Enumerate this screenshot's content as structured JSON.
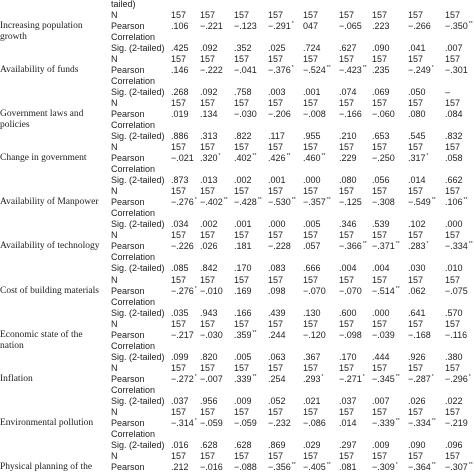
{
  "table": {
    "rows": [
      {
        "var": "",
        "stat": "tailed)",
        "values": []
      },
      {
        "var": "",
        "stat": "N",
        "values": [
          "157",
          "157",
          "157",
          "157",
          "157",
          "157",
          "157",
          "157",
          "157"
        ]
      },
      {
        "var": "Increasing population",
        "stat": "Pearson",
        "values": [
          ".106",
          "−.221",
          "−.123",
          "−.291",
          "047",
          "−.065",
          ".223",
          "−.266",
          "−.350"
        ]
      },
      {
        "var": "growth",
        "stat": "Correlation",
        "values": []
      },
      {
        "var": "",
        "stat": "Sig. (2-tailed)",
        "values": [
          ".425",
          ".092",
          ".352",
          ".025",
          ".724",
          ".627",
          ".090",
          ".041",
          ".007"
        ]
      },
      {
        "var": "",
        "stat": "N",
        "values": [
          "157",
          "157",
          "157",
          "157",
          "157",
          "157",
          "157",
          "157",
          "157"
        ]
      },
      {
        "var": "Availability of funds",
        "stat": "Pearson",
        "values": [
          ".146",
          "−.222",
          "−.041",
          "−.376",
          "−.524",
          "−.423",
          ".235",
          "−.249",
          "−.301"
        ]
      },
      {
        "var": "",
        "stat": "Correlation",
        "values": []
      },
      {
        "var": "",
        "stat": "Sig. (2-tailed)",
        "values": [
          ".268",
          ".092",
          ".758",
          ".003",
          ".001",
          ".074",
          ".069",
          ".050",
          "–"
        ]
      },
      {
        "var": "",
        "stat": "N",
        "values": [
          "157",
          "157",
          "157",
          "157",
          "157",
          "157",
          "157",
          "157",
          "157"
        ]
      },
      {
        "var": "Government laws and",
        "stat": "Pearson",
        "values": [
          ".019",
          ".134",
          "−.030",
          "−.206",
          "−.008",
          "−.166",
          "−.060",
          ".080",
          ".084"
        ]
      },
      {
        "var": "policies",
        "stat": "Correlation",
        "values": []
      },
      {
        "var": "",
        "stat": "Sig. (2-tailed)",
        "values": [
          ".886",
          ".313",
          ".822",
          ".117",
          ".955",
          ".210",
          ".653",
          ".545",
          ".832"
        ]
      },
      {
        "var": "",
        "stat": "N",
        "values": [
          "157",
          "157",
          "157",
          "157",
          "157",
          "157",
          "157",
          "157",
          "157"
        ]
      },
      {
        "var": "Change in government",
        "stat": "Pearson",
        "values": [
          "−.021",
          ".320",
          ".402",
          ".426",
          ".460",
          ".229",
          "−.250",
          ".317",
          ".058"
        ]
      },
      {
        "var": "",
        "stat": "Correlation",
        "values": []
      },
      {
        "var": "",
        "stat": "Sig. (2-tailed)",
        "values": [
          ".873",
          ".013",
          ".002",
          ".001",
          ".000",
          ".080",
          ".056",
          ".014",
          ".662"
        ]
      },
      {
        "var": "",
        "stat": "N",
        "values": [
          "157",
          "157",
          "157",
          "157",
          "157",
          "157",
          "157",
          "157",
          "157"
        ]
      },
      {
        "var": "Availability of Manpower",
        "stat": "Pearson",
        "values": [
          "−.276",
          "−.402",
          "−.428",
          "−.530",
          "−.357",
          "−.125",
          "−.308",
          "−.549",
          ".106"
        ]
      },
      {
        "var": "",
        "stat": "Correlation",
        "values": []
      },
      {
        "var": "",
        "stat": "Sig. (2-tailed)",
        "values": [
          ".034",
          ".002",
          ".001",
          ".000",
          ".005",
          ".346",
          ".539",
          ".102",
          ".000"
        ]
      },
      {
        "var": "",
        "stat": "N",
        "values": [
          "157",
          "157",
          "157",
          "157",
          "157",
          "157",
          "157",
          "157",
          "157"
        ]
      },
      {
        "var": "Availability of technology",
        "stat": "Pearson",
        "values": [
          "−.226",
          ".026",
          ".181",
          "−.228",
          ".057",
          "−.366",
          "−.371",
          ".283",
          "−.334"
        ]
      },
      {
        "var": "",
        "stat": "Correlation",
        "values": []
      },
      {
        "var": "",
        "stat": "Sig. (2-tailed)",
        "values": [
          ".085",
          ".842",
          ".170",
          ".083",
          ".666",
          ".004",
          ".004",
          ".030",
          ".010"
        ]
      },
      {
        "var": "",
        "stat": "N",
        "values": [
          "157",
          "157",
          "157",
          "157",
          "157",
          "157",
          "157",
          "157",
          "157"
        ]
      },
      {
        "var": "Cost of building materials",
        "stat": "Pearson",
        "values": [
          "−.276",
          "−.010",
          ".169",
          ".098",
          "−.070",
          "−.070",
          "−.514",
          ".062",
          "−.075"
        ]
      },
      {
        "var": "",
        "stat": "Correlation",
        "values": []
      },
      {
        "var": "",
        "stat": "Sig. (2-tailed)",
        "values": [
          ".035",
          ".943",
          ".166",
          ".439",
          ".130",
          ".600",
          ".000",
          ".641",
          ".570"
        ]
      },
      {
        "var": "",
        "stat": "N",
        "values": [
          "157",
          "157",
          "157",
          "157",
          "157",
          "157",
          "157",
          "157",
          "157"
        ]
      },
      {
        "var": "Economic state of the",
        "stat": "Pearson",
        "values": [
          "−.217",
          "−.030",
          ".359",
          ".244",
          "−.120",
          "−.098",
          "−.039",
          "−.168",
          "−.116"
        ]
      },
      {
        "var": "nation",
        "stat": "Correlation",
        "values": []
      },
      {
        "var": "",
        "stat": "Sig. (2-tailed)",
        "values": [
          ".099",
          ".820",
          ".005",
          ".063",
          ".367",
          ".170",
          ".444",
          ".926",
          ".380"
        ]
      },
      {
        "var": "",
        "stat": "N",
        "values": [
          "157",
          "157",
          "157",
          "157",
          "157",
          "157",
          "157",
          "157",
          "157"
        ]
      },
      {
        "var": "Inflation",
        "stat": "Pearson",
        "values": [
          "−.272",
          "−.007",
          ".339",
          ".254",
          ".293",
          "−.271",
          "−.345",
          "−.287",
          "−.296"
        ]
      },
      {
        "var": "",
        "stat": "Correlation",
        "values": []
      },
      {
        "var": "",
        "stat": "Sig. (2-tailed)",
        "values": [
          ".037",
          ".956",
          ".009",
          ".052",
          ".021",
          ".037",
          ".007",
          ".026",
          ".022"
        ]
      },
      {
        "var": "",
        "stat": "N",
        "values": [
          "157",
          "157",
          "157",
          "157",
          "157",
          "157",
          "157",
          "157",
          "157"
        ]
      },
      {
        "var": "Environmental pollution",
        "stat": "Pearson",
        "values": [
          "−.314",
          "−.059",
          "−.059",
          "−.232",
          "−.086",
          ".014",
          "−.339",
          "−.334",
          "−.219"
        ]
      },
      {
        "var": "",
        "stat": "Correlation",
        "values": []
      },
      {
        "var": "",
        "stat": "Sig. (2-tailed)",
        "values": [
          ".016",
          ".628",
          ".628",
          ".869",
          ".029",
          ".297",
          ".009",
          ".090",
          ".096"
        ]
      },
      {
        "var": "",
        "stat": "N",
        "values": [
          "157",
          "157",
          "157",
          "157",
          "157",
          "157",
          "157",
          "157",
          "157"
        ]
      },
      {
        "var": "Physical planning of the",
        "stat": "Pearson",
        "values": [
          ".212",
          "−.016",
          "−.088",
          "−.356",
          "−.405",
          ".081",
          "−.309",
          "−.364",
          "−.307"
        ]
      }
    ],
    "significance_marks": {
      "2": {
        "3": "*",
        "8": "**"
      },
      "6": {
        "3": "*",
        "4": "**",
        "5": "**",
        "7": "*"
      },
      "14": {
        "1": "*",
        "2": "**",
        "3": "**",
        "4": "**",
        "7": "*"
      },
      "18": {
        "0": "*",
        "1": "**",
        "2": "**",
        "3": "**",
        "4": "**",
        "7": "**",
        "8": "**"
      },
      "22": {
        "5": "**",
        "6": "**",
        "7": "*",
        "8": "**"
      },
      "26": {
        "0": "*",
        "6": "**"
      },
      "30": {
        "2": "**"
      },
      "34": {
        "0": "*",
        "2": "**",
        "4": "*",
        "5": "*",
        "6": "**",
        "7": "*",
        "8": "*"
      },
      "38": {
        "0": "*",
        "6": "**",
        "7": "**"
      },
      "42": {
        "3": "**",
        "4": "**",
        "6": "*",
        "7": "**",
        "8": "**"
      }
    }
  }
}
